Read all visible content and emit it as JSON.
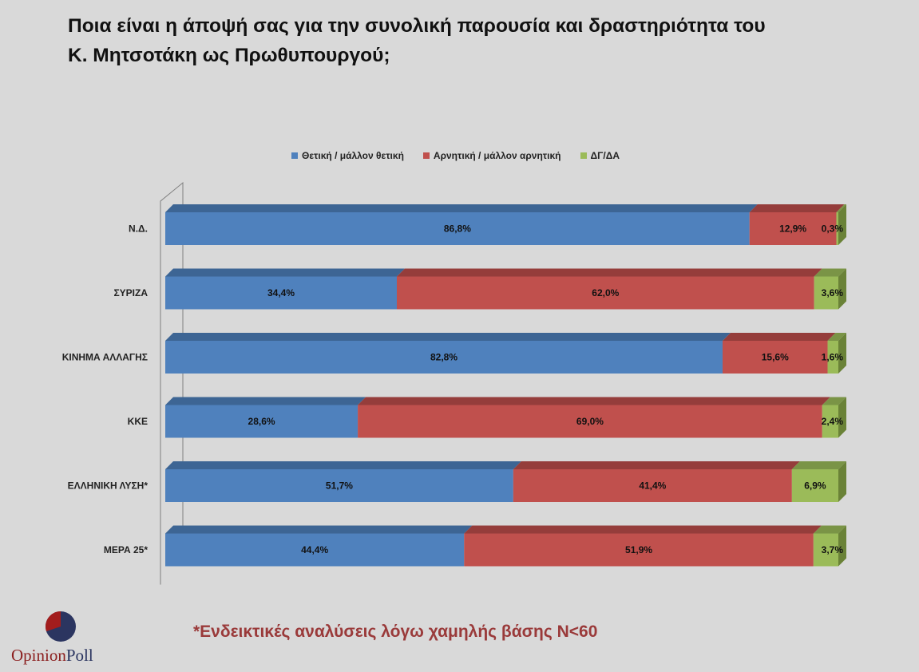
{
  "title_lines": [
    "Ποια είναι η άποψή σας για την συνολική παρουσία και δραστηριότητα του",
    "Κ. Μητσοτάκη ως Πρωθυπουργού;"
  ],
  "footnote": "*Ενδεικτικές αναλύσεις λόγω χαμηλής βάσης Ν<60",
  "logo": {
    "part1": "Opinion",
    "part2": "Poll"
  },
  "chart_data": {
    "type": "bar",
    "orientation": "horizontal",
    "stacked": true,
    "percent_stacked": true,
    "categories": [
      "Ν.Δ.",
      "ΣΥΡΙΖΑ",
      "ΚΙΝΗΜΑ ΑΛΛΑΓΗΣ",
      "ΚΚΕ",
      "ΕΛΛΗΝΙΚΗ ΛΥΣΗ*",
      "ΜΕΡΑ 25*"
    ],
    "series": [
      {
        "name": "Θετική / μάλλον θετική",
        "color": "#4f81bd",
        "top_color": "#3d6594",
        "values": [
          86.8,
          34.4,
          82.8,
          28.6,
          51.7,
          44.4
        ],
        "labels": [
          "86,8%",
          "34,4%",
          "82,8%",
          "28,6%",
          "51,7%",
          "44,4%"
        ]
      },
      {
        "name": "Αρνητική / μάλλον αρνητική",
        "color": "#c0504d",
        "top_color": "#953d3b",
        "values": [
          12.9,
          62.0,
          15.6,
          69.0,
          41.4,
          51.9
        ],
        "labels": [
          "12,9%",
          "62,0%",
          "15,6%",
          "69,0%",
          "41,4%",
          "51,9%"
        ]
      },
      {
        "name": "ΔΓ/ΔΑ",
        "color": "#9bbb59",
        "top_color": "#7a9446",
        "side_color": "#6a8237",
        "values": [
          0.3,
          3.6,
          1.6,
          2.4,
          6.9,
          3.7
        ],
        "labels": [
          "0,3%",
          "3,6%",
          "1,6%",
          "2,4%",
          "6,9%",
          "3,7%"
        ]
      }
    ],
    "xlim": [
      0,
      100
    ],
    "legend_position": "top",
    "grid": false
  }
}
